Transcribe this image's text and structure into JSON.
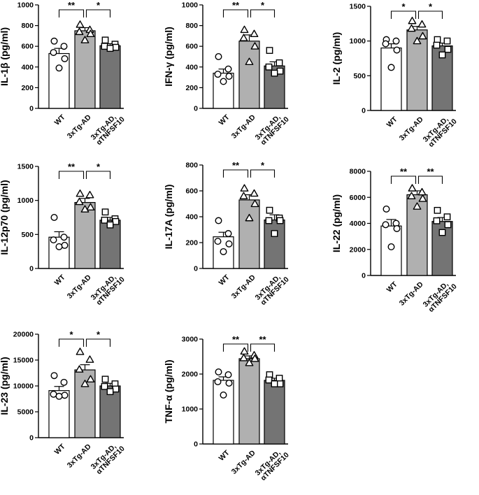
{
  "figure": {
    "background": "#ffffff"
  },
  "style": {
    "bar_colors": [
      "#ffffff",
      "#b0b0b0",
      "#747474"
    ],
    "marker_shapes": [
      "circle",
      "triangle",
      "square"
    ],
    "marker_fill": "#ffffff",
    "stroke": "#000000"
  },
  "chart_data": [
    {
      "type": "bar",
      "ylabel": "IL-1β (pg/ml)",
      "ylim": [
        0,
        1000
      ],
      "yticks": [
        0,
        200,
        400,
        600,
        800,
        1000
      ],
      "tick_labels": [
        "0",
        "200",
        "400",
        "600",
        "800",
        "1000"
      ],
      "categories": [
        [
          "WT"
        ],
        [
          "3xTg-AD"
        ],
        [
          "3xTg-AD,",
          "αTNFSF10"
        ]
      ],
      "values": [
        530,
        750,
        605
      ],
      "sem": [
        50,
        30,
        20
      ],
      "points": [
        [
          650,
          600,
          540,
          480,
          390
        ],
        [
          810,
          760,
          740,
          720,
          660
        ],
        [
          660,
          620,
          600,
          590,
          580
        ]
      ],
      "significance": [
        {
          "from": 0,
          "to": 1,
          "label": "**"
        },
        {
          "from": 1,
          "to": 2,
          "label": "*"
        }
      ]
    },
    {
      "type": "bar",
      "ylabel": "IFN-γ (pg/ml)",
      "ylim": [
        0,
        1000
      ],
      "yticks": [
        0,
        200,
        400,
        600,
        800,
        1000
      ],
      "tick_labels": [
        "0",
        "200",
        "400",
        "600",
        "800",
        "1000"
      ],
      "categories": [
        [
          "WT"
        ],
        [
          "3xTg-AD"
        ],
        [
          "3xTg-AD,",
          "αTNFSF10"
        ]
      ],
      "values": [
        340,
        650,
        410
      ],
      "sem": [
        40,
        60,
        40
      ],
      "points": [
        [
          500,
          380,
          330,
          310,
          260
        ],
        [
          760,
          720,
          680,
          600,
          450
        ],
        [
          560,
          440,
          400,
          360,
          340
        ]
      ],
      "significance": [
        {
          "from": 0,
          "to": 1,
          "label": "**"
        },
        {
          "from": 1,
          "to": 2,
          "label": "*"
        }
      ]
    },
    {
      "type": "bar",
      "ylabel": "IL-2 (pg/ml)",
      "ylim": [
        0,
        1500
      ],
      "yticks": [
        0,
        500,
        1000,
        1500
      ],
      "tick_labels": [
        "0",
        "500",
        "1000",
        "1500"
      ],
      "categories": [
        [
          "WT"
        ],
        [
          "3xTg-AD"
        ],
        [
          "3xTg-AD,",
          "αTNFSF10"
        ]
      ],
      "values": [
        900,
        1160,
        930
      ],
      "sem": [
        60,
        50,
        40
      ],
      "points": [
        [
          1020,
          1000,
          960,
          870,
          620
        ],
        [
          1290,
          1240,
          1180,
          1070,
          1000
        ],
        [
          1020,
          1000,
          940,
          880,
          800
        ]
      ],
      "significance": [
        {
          "from": 0,
          "to": 1,
          "label": "*"
        },
        {
          "from": 1,
          "to": 2,
          "label": "*"
        }
      ]
    },
    {
      "type": "bar",
      "ylabel": "IL-12p70 (pg/ml)",
      "ylim": [
        0,
        1500
      ],
      "yticks": [
        0,
        500,
        1000,
        1500
      ],
      "tick_labels": [
        "0",
        "500",
        "1000",
        "1500"
      ],
      "categories": [
        [
          "WT"
        ],
        [
          "3xTg-AD"
        ],
        [
          "3xTg-AD,",
          "αTNFSF10"
        ]
      ],
      "values": [
        460,
        970,
        710
      ],
      "sem": [
        80,
        60,
        40
      ],
      "points": [
        [
          750,
          460,
          420,
          340,
          320
        ],
        [
          1100,
          1080,
          980,
          900,
          870
        ],
        [
          830,
          730,
          710,
          690,
          640
        ]
      ],
      "significance": [
        {
          "from": 0,
          "to": 1,
          "label": "**"
        },
        {
          "from": 1,
          "to": 2,
          "label": "*"
        }
      ]
    },
    {
      "type": "bar",
      "ylabel": "IL-17A (pg/ml)",
      "ylim": [
        0,
        800
      ],
      "yticks": [
        0,
        200,
        400,
        600,
        800
      ],
      "tick_labels": [
        "0",
        "200",
        "400",
        "600",
        "800"
      ],
      "categories": [
        [
          "WT"
        ],
        [
          "3xTg-AD"
        ],
        [
          "3xTg-AD,",
          "αTNFSF10"
        ]
      ],
      "values": [
        245,
        530,
        375
      ],
      "sem": [
        35,
        40,
        40
      ],
      "points": [
        [
          370,
          270,
          210,
          190,
          130
        ],
        [
          620,
          580,
          560,
          500,
          390
        ],
        [
          450,
          390,
          370,
          370,
          270
        ]
      ],
      "significance": [
        {
          "from": 0,
          "to": 1,
          "label": "**"
        },
        {
          "from": 1,
          "to": 2,
          "label": "*"
        }
      ]
    },
    {
      "type": "bar",
      "ylabel": "IL-22 (pg/ml)",
      "ylim": [
        0,
        8000
      ],
      "yticks": [
        0,
        2000,
        4000,
        6000,
        8000
      ],
      "tick_labels": [
        "0",
        "2000",
        "4000",
        "6000",
        "8000"
      ],
      "categories": [
        [
          "WT"
        ],
        [
          "3xTg-AD"
        ],
        [
          "3xTg-AD,",
          "αTNFSF10"
        ]
      ],
      "values": [
        3800,
        6200,
        4150
      ],
      "sem": [
        500,
        300,
        300
      ],
      "points": [
        [
          5100,
          4000,
          3900,
          3600,
          2200
        ],
        [
          6700,
          6400,
          6100,
          5900,
          5300
        ],
        [
          5000,
          4500,
          4200,
          3900,
          3300
        ]
      ],
      "significance": [
        {
          "from": 0,
          "to": 1,
          "label": "**"
        },
        {
          "from": 1,
          "to": 2,
          "label": "**"
        }
      ]
    },
    {
      "type": "bar",
      "ylabel": "IL-23 (pg/ml)",
      "ylim": [
        0,
        20000
      ],
      "yticks": [
        0,
        5000,
        10000,
        15000,
        20000
      ],
      "tick_labels": [
        "0",
        "5000",
        "10000",
        "15000",
        "20000"
      ],
      "categories": [
        [
          "WT"
        ],
        [
          "3xTg-AD"
        ],
        [
          "3xTg-AD,",
          "αTNFSF10"
        ]
      ],
      "values": [
        9100,
        13100,
        10000
      ],
      "sem": [
        800,
        1000,
        500
      ],
      "points": [
        [
          12000,
          10700,
          8400,
          8200,
          8000
        ],
        [
          16600,
          15100,
          13200,
          11300,
          10400
        ],
        [
          11300,
          10400,
          9900,
          9400,
          8900
        ]
      ],
      "significance": [
        {
          "from": 0,
          "to": 1,
          "label": "*"
        },
        {
          "from": 1,
          "to": 2,
          "label": "*"
        }
      ]
    },
    {
      "type": "bar",
      "ylabel": "TNF-α (pg/ml)",
      "ylim": [
        0,
        3000
      ],
      "yticks": [
        0,
        1000,
        2000,
        3000
      ],
      "tick_labels": [
        "0",
        "1000",
        "2000",
        "3000"
      ],
      "categories": [
        [
          "WT"
        ],
        [
          "3xTg-AD"
        ],
        [
          "3xTg-AD,",
          "αTNFSF10"
        ]
      ],
      "values": [
        1820,
        2440,
        1820
      ],
      "sem": [
        100,
        80,
        60
      ],
      "points": [
        [
          2060,
          1980,
          1780,
          1740,
          1400
        ],
        [
          2650,
          2540,
          2460,
          2440,
          2320
        ],
        [
          1980,
          1880,
          1830,
          1720,
          1720
        ]
      ],
      "significance": [
        {
          "from": 0,
          "to": 1,
          "label": "**"
        },
        {
          "from": 1,
          "to": 2,
          "label": "**"
        }
      ]
    }
  ]
}
